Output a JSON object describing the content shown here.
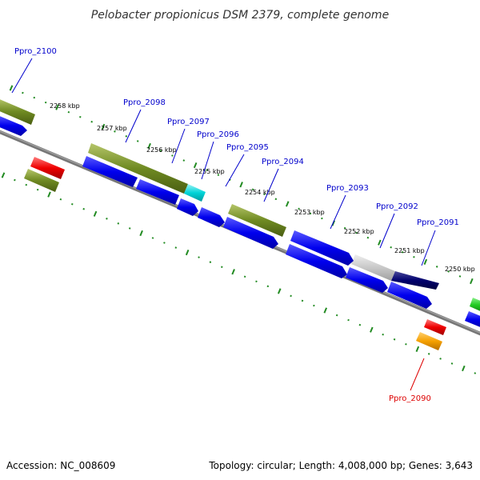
{
  "title": "Pelobacter propionicus DSM 2379, complete genome",
  "footer": {
    "accession": "Accession: NC_008609",
    "summary": "Topology: circular; Length: 4,008,000 bp; Genes: 3,643"
  },
  "colors": {
    "backbone": "#777777",
    "tick": "#228B22",
    "cds": "#0000ee",
    "olive": "#6B8E23",
    "cyan": "#00CED1",
    "gray": "#C8C8C8",
    "navy": "#00006e",
    "red": "#ee0000",
    "orange": "#f5a000",
    "green": "#22cc22",
    "label_blue": "#0000cc",
    "label_red": "#dd0000"
  },
  "kbp_labels": [
    "2258 kbp",
    "2257 kbp",
    "2256 kbp",
    "2255 kbp",
    "2254 kbp",
    "2253 kbp",
    "2252 kbp",
    "2251 kbp",
    "2250 kbp"
  ],
  "gene_labels": [
    "Ppro_2100",
    "Ppro_2098",
    "Ppro_2097",
    "Ppro_2096",
    "Ppro_2095",
    "Ppro_2094",
    "Ppro_2093",
    "Ppro_2092",
    "Ppro_2091",
    "Ppro_2090"
  ],
  "features": [
    {
      "name": "feature-olive-1",
      "kind": "olive"
    },
    {
      "name": "feature-cds-1",
      "kind": "cds"
    },
    {
      "name": "feature-olive-2",
      "kind": "olive"
    },
    {
      "name": "feature-cyan-1",
      "kind": "cyan"
    },
    {
      "name": "feature-olive-3",
      "kind": "olive"
    },
    {
      "name": "feature-gray-1",
      "kind": "gray"
    },
    {
      "name": "feature-navy-1",
      "kind": "navy"
    },
    {
      "name": "feature-cds-2",
      "kind": "cds"
    },
    {
      "name": "feature-cds-3",
      "kind": "cds"
    },
    {
      "name": "feature-cds-4",
      "kind": "cds"
    },
    {
      "name": "feature-cds-5",
      "kind": "cds"
    },
    {
      "name": "feature-cds-6",
      "kind": "cds"
    },
    {
      "name": "feature-cds-7",
      "kind": "cds"
    },
    {
      "name": "feature-cds-8",
      "kind": "cds"
    },
    {
      "name": "feature-cds-9",
      "kind": "cds"
    },
    {
      "name": "feature-cds-10",
      "kind": "cds"
    },
    {
      "name": "feature-cds-11",
      "kind": "cds"
    },
    {
      "name": "feature-green-1",
      "kind": "green"
    },
    {
      "name": "feature-red-1",
      "kind": "red"
    },
    {
      "name": "feature-olive-4",
      "kind": "olive"
    },
    {
      "name": "feature-red-2",
      "kind": "red"
    },
    {
      "name": "feature-orange-1",
      "kind": "orange"
    }
  ]
}
